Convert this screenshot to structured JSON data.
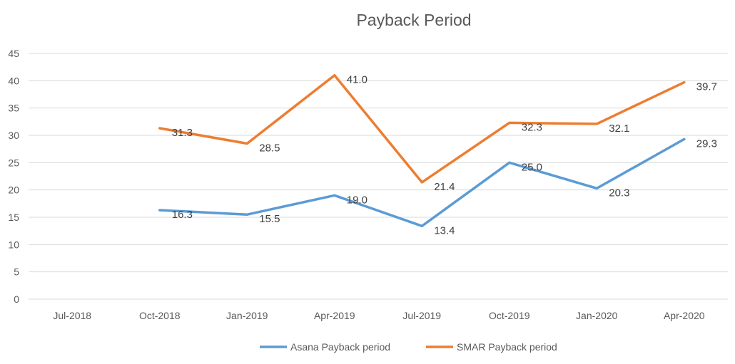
{
  "chart_data": {
    "type": "line",
    "title": "Payback Period",
    "xlabel": "",
    "ylabel": "",
    "categories": [
      "Jul-2018",
      "Oct-2018",
      "Jan-2019",
      "Apr-2019",
      "Jul-2019",
      "Oct-2019",
      "Jan-2020",
      "Apr-2020"
    ],
    "ylim": [
      0,
      45
    ],
    "yticks": [
      0,
      5,
      10,
      15,
      20,
      25,
      30,
      35,
      40,
      45
    ],
    "grid": true,
    "legend_position": "bottom",
    "series": [
      {
        "name": "Asana Payback period",
        "color": "#5B9BD5",
        "values": [
          null,
          16.3,
          15.5,
          19.0,
          13.4,
          25.0,
          20.3,
          29.3
        ],
        "labels": [
          "",
          "16.3",
          "15.5",
          "19.0",
          "13.4",
          "25.0",
          "20.3",
          "29.3"
        ]
      },
      {
        "name": "SMAR Payback period",
        "color": "#ED7D31",
        "values": [
          null,
          31.3,
          28.5,
          41.0,
          21.4,
          32.3,
          32.1,
          39.7
        ],
        "labels": [
          "",
          "31.3",
          "28.5",
          "41.0",
          "21.4",
          "32.3",
          "32.1",
          "39.7"
        ]
      }
    ]
  }
}
